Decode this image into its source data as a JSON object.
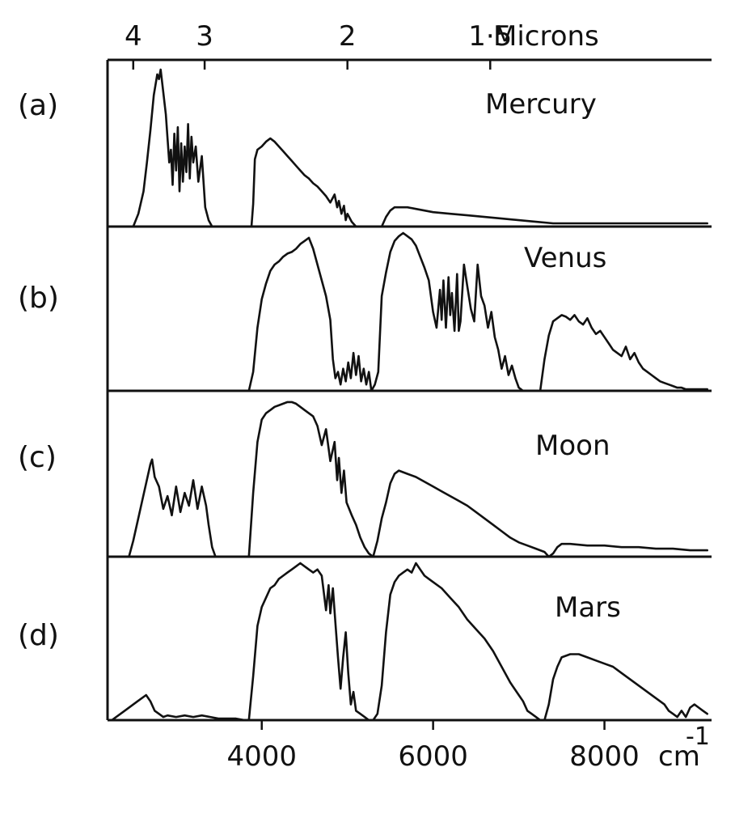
{
  "chart_data": {
    "type": "line",
    "top_axis": {
      "unit_label": "Microns",
      "ticks": [
        {
          "value": 4,
          "label": "4"
        },
        {
          "value": 3,
          "label": "3"
        },
        {
          "value": 2,
          "label": "2"
        },
        {
          "value": 1.5,
          "label": "1·5"
        }
      ]
    },
    "bottom_axis": {
      "unit_label": "cm",
      "unit_exponent": "-1",
      "xlim": [
        2200,
        9250
      ],
      "ticks": [
        {
          "value": 4000,
          "label": "4000"
        },
        {
          "value": 6000,
          "label": "6000"
        },
        {
          "value": 8000,
          "label": "8000"
        }
      ]
    },
    "panels": [
      {
        "tag": "(a)",
        "name": "Mercury",
        "x": [
          2500,
          2560,
          2620,
          2660,
          2700,
          2740,
          2780,
          2800,
          2820,
          2850,
          2880,
          2900,
          2920,
          2940,
          2960,
          2980,
          3000,
          3020,
          3040,
          3060,
          3080,
          3100,
          3120,
          3140,
          3160,
          3180,
          3200,
          3230,
          3260,
          3300,
          3340,
          3380,
          3420,
          3460,
          3500,
          3540,
          3580,
          3620,
          3660,
          3700,
          3750,
          3800,
          3850,
          3880,
          3900,
          3920,
          3950,
          4000,
          4050,
          4100,
          4150,
          4200,
          4250,
          4300,
          4350,
          4400,
          4450,
          4500,
          4550,
          4600,
          4650,
          4700,
          4750,
          4800,
          4850,
          4880,
          4900,
          4930,
          4960,
          4980,
          5000,
          5050,
          5100,
          5150,
          5200,
          5250,
          5300,
          5350,
          5400,
          5450,
          5500,
          5550,
          5600,
          5700,
          5800,
          5900,
          6000,
          6200,
          6400,
          6600,
          6800,
          7000,
          7200,
          7400,
          7600,
          7800,
          8000,
          8200,
          8400,
          8600,
          8800,
          9000,
          9200
        ],
        "y": [
          0,
          8,
          22,
          40,
          60,
          82,
          95,
          92,
          98,
          84,
          70,
          55,
          40,
          48,
          26,
          58,
          35,
          62,
          22,
          52,
          28,
          50,
          34,
          64,
          30,
          56,
          40,
          50,
          28,
          44,
          12,
          4,
          0,
          0,
          0,
          0,
          0,
          0,
          0,
          0,
          0,
          0,
          0,
          0,
          14,
          42,
          48,
          50,
          53,
          55,
          53,
          50,
          47,
          44,
          41,
          38,
          35,
          32,
          30,
          27,
          25,
          22,
          19,
          15,
          20,
          12,
          16,
          8,
          13,
          4,
          8,
          3,
          0,
          0,
          0,
          0,
          0,
          0,
          0,
          6,
          10,
          12,
          12,
          12,
          11,
          10,
          9,
          8,
          7,
          6,
          5,
          4,
          3,
          2,
          2,
          2,
          2,
          2,
          2,
          2,
          2,
          2,
          2
        ],
        "ylim": [
          0,
          100
        ]
      },
      {
        "tag": "(b)",
        "name": "Venus",
        "x": [
          3850,
          3900,
          3950,
          4000,
          4050,
          4100,
          4150,
          4200,
          4250,
          4300,
          4350,
          4400,
          4450,
          4500,
          4550,
          4600,
          4650,
          4700,
          4750,
          4800,
          4830,
          4860,
          4890,
          4920,
          4950,
          4980,
          5010,
          5040,
          5070,
          5100,
          5130,
          5160,
          5190,
          5220,
          5250,
          5280,
          5320,
          5360,
          5400,
          5450,
          5500,
          5550,
          5600,
          5650,
          5700,
          5750,
          5800,
          5850,
          5900,
          5950,
          6000,
          6040,
          6080,
          6100,
          6120,
          6150,
          6180,
          6200,
          6220,
          6250,
          6280,
          6300,
          6320,
          6360,
          6400,
          6440,
          6480,
          6520,
          6560,
          6600,
          6640,
          6680,
          6720,
          6760,
          6800,
          6840,
          6880,
          6920,
          6960,
          7000,
          7050,
          7100,
          7150,
          7200,
          7250,
          7300,
          7350,
          7400,
          7450,
          7500,
          7550,
          7600,
          7650,
          7700,
          7750,
          7800,
          7850,
          7900,
          7950,
          8000,
          8050,
          8100,
          8150,
          8200,
          8250,
          8300,
          8350,
          8400,
          8450,
          8500,
          8550,
          8600,
          8650,
          8700,
          8750,
          8800,
          8850,
          8900,
          8950,
          9000,
          9050,
          9100,
          9150,
          9200
        ],
        "y": [
          0,
          12,
          40,
          58,
          68,
          76,
          80,
          82,
          85,
          87,
          88,
          90,
          93,
          95,
          97,
          90,
          80,
          70,
          60,
          45,
          20,
          8,
          12,
          4,
          14,
          6,
          18,
          8,
          24,
          10,
          22,
          6,
          14,
          4,
          12,
          0,
          4,
          12,
          60,
          75,
          88,
          95,
          98,
          100,
          98,
          96,
          92,
          85,
          78,
          70,
          50,
          40,
          64,
          45,
          70,
          40,
          72,
          48,
          62,
          38,
          74,
          38,
          44,
          80,
          66,
          52,
          44,
          80,
          60,
          54,
          40,
          50,
          34,
          26,
          14,
          22,
          10,
          16,
          8,
          2,
          0,
          0,
          0,
          0,
          0,
          20,
          35,
          44,
          46,
          48,
          47,
          45,
          48,
          44,
          42,
          46,
          40,
          36,
          38,
          34,
          30,
          26,
          24,
          22,
          28,
          20,
          24,
          18,
          14,
          12,
          10,
          8,
          6,
          5,
          4,
          3,
          2,
          2,
          1,
          1,
          1,
          1,
          1,
          1
        ],
        "ylim": [
          0,
          100
        ]
      },
      {
        "tag": "(c)",
        "name": "Moon",
        "x": [
          2450,
          2500,
          2550,
          2600,
          2650,
          2700,
          2720,
          2750,
          2800,
          2850,
          2900,
          2950,
          3000,
          3050,
          3100,
          3150,
          3200,
          3250,
          3300,
          3350,
          3380,
          3420,
          3460,
          3500,
          3600,
          3700,
          3800,
          3850,
          3900,
          3950,
          4000,
          4050,
          4100,
          4150,
          4200,
          4250,
          4300,
          4350,
          4400,
          4450,
          4500,
          4550,
          4600,
          4650,
          4700,
          4750,
          4800,
          4850,
          4880,
          4900,
          4930,
          4960,
          4990,
          5020,
          5050,
          5100,
          5150,
          5200,
          5250,
          5300,
          5350,
          5400,
          5450,
          5500,
          5550,
          5600,
          5700,
          5800,
          5900,
          6000,
          6100,
          6200,
          6300,
          6400,
          6500,
          6600,
          6700,
          6800,
          6900,
          7000,
          7100,
          7200,
          7300,
          7350,
          7400,
          7450,
          7500,
          7600,
          7800,
          8000,
          8200,
          8400,
          8600,
          8800,
          9000,
          9200
        ],
        "y": [
          0,
          10,
          22,
          34,
          46,
          58,
          61,
          50,
          44,
          30,
          38,
          26,
          44,
          28,
          40,
          32,
          48,
          30,
          44,
          32,
          20,
          6,
          0,
          0,
          0,
          0,
          0,
          0,
          40,
          72,
          86,
          90,
          92,
          94,
          95,
          96,
          97,
          97,
          96,
          94,
          92,
          90,
          88,
          82,
          70,
          80,
          60,
          72,
          48,
          62,
          40,
          54,
          34,
          30,
          26,
          20,
          12,
          6,
          2,
          0,
          10,
          24,
          34,
          46,
          52,
          54,
          52,
          50,
          47,
          44,
          41,
          38,
          35,
          32,
          28,
          24,
          20,
          16,
          12,
          9,
          7,
          5,
          3,
          0,
          2,
          6,
          8,
          8,
          7,
          7,
          6,
          6,
          5,
          5,
          4,
          4
        ],
        "ylim": [
          0,
          100
        ]
      },
      {
        "tag": "(d)",
        "name": "Mars",
        "x": [
          2250,
          2400,
          2550,
          2650,
          2700,
          2750,
          2800,
          2850,
          2900,
          3000,
          3100,
          3200,
          3300,
          3400,
          3500,
          3600,
          3700,
          3800,
          3850,
          3900,
          3950,
          4000,
          4050,
          4100,
          4150,
          4200,
          4250,
          4300,
          4350,
          4400,
          4450,
          4500,
          4550,
          4600,
          4650,
          4700,
          4750,
          4780,
          4800,
          4830,
          4860,
          4890,
          4920,
          4950,
          4980,
          5010,
          5040,
          5070,
          5100,
          5150,
          5200,
          5250,
          5300,
          5350,
          5400,
          5450,
          5500,
          5550,
          5600,
          5650,
          5700,
          5750,
          5800,
          5850,
          5900,
          5950,
          6000,
          6100,
          6200,
          6300,
          6400,
          6500,
          6600,
          6700,
          6800,
          6900,
          7000,
          7050,
          7100,
          7150,
          7200,
          7250,
          7300,
          7350,
          7400,
          7450,
          7500,
          7600,
          7700,
          7800,
          7900,
          8000,
          8100,
          8200,
          8300,
          8400,
          8500,
          8600,
          8700,
          8750,
          8800,
          8850,
          8900,
          8950,
          9000,
          9050,
          9100,
          9150,
          9200
        ],
        "y": [
          0,
          6,
          12,
          16,
          12,
          6,
          4,
          2,
          3,
          2,
          3,
          2,
          3,
          2,
          1,
          1,
          1,
          0,
          0,
          28,
          60,
          72,
          78,
          84,
          86,
          90,
          92,
          94,
          96,
          98,
          100,
          98,
          96,
          94,
          96,
          92,
          70,
          86,
          68,
          84,
          62,
          40,
          20,
          40,
          56,
          30,
          10,
          18,
          6,
          4,
          2,
          0,
          0,
          4,
          22,
          56,
          80,
          88,
          92,
          94,
          96,
          94,
          100,
          96,
          92,
          90,
          88,
          84,
          78,
          72,
          64,
          58,
          52,
          44,
          34,
          24,
          16,
          12,
          6,
          4,
          2,
          0,
          0,
          10,
          26,
          34,
          40,
          42,
          42,
          40,
          38,
          36,
          34,
          30,
          26,
          22,
          18,
          14,
          10,
          6,
          4,
          2,
          6,
          2,
          8,
          10,
          8,
          6,
          4
        ],
        "ylim": [
          0,
          100
        ]
      }
    ]
  }
}
